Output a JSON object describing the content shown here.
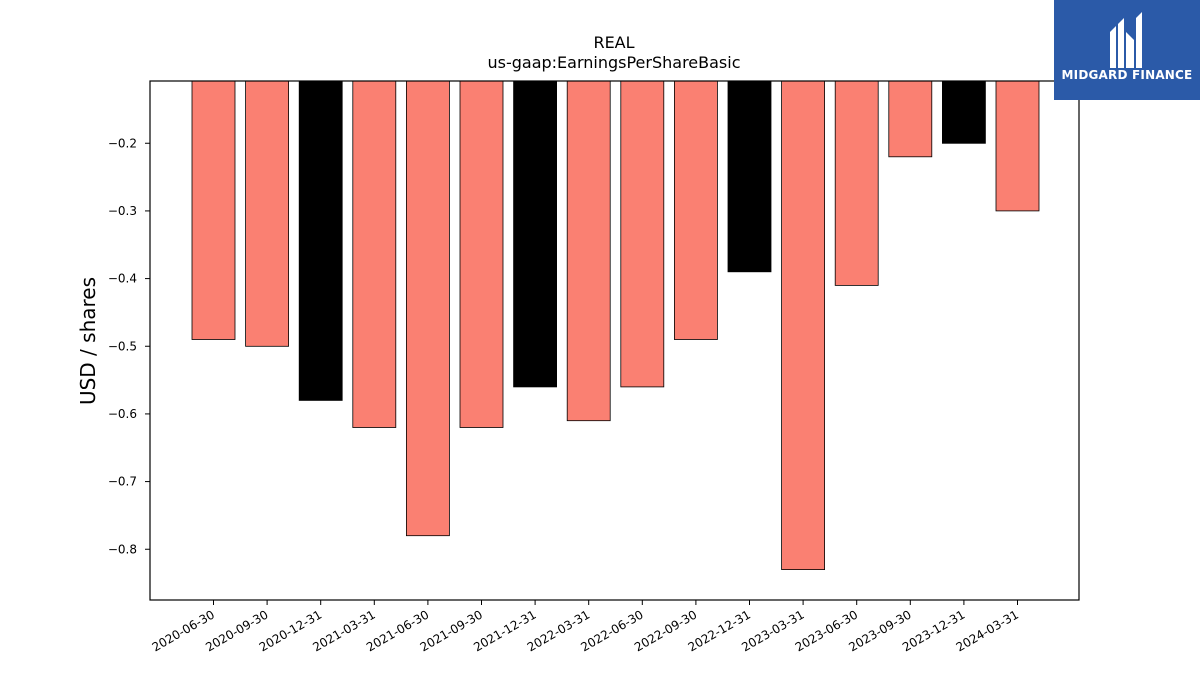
{
  "brand": {
    "name": "MIDGARD FINANCE",
    "logo_icon": "midgard-m-logo-icon",
    "bg_color": "#2b5aa8"
  },
  "chart_data": {
    "type": "bar",
    "title": "REAL",
    "subtitle": "us-gaap:EarningsPerShareBasic",
    "xlabel": "",
    "ylabel": "USD / shares",
    "ylim": [
      -0.875,
      -0.108
    ],
    "yticks": [
      -0.8,
      -0.7,
      -0.6,
      -0.5,
      -0.4,
      -0.3,
      -0.2
    ],
    "ytick_labels": [
      "−0.8",
      "−0.7",
      "−0.6",
      "−0.5",
      "−0.4",
      "−0.3",
      "−0.2"
    ],
    "grid": false,
    "colors": {
      "quarter": "#fa8072",
      "year_end": "#000000"
    },
    "categories": [
      "2020-06-30",
      "2020-09-30",
      "2020-12-31",
      "2021-03-31",
      "2021-06-30",
      "2021-09-30",
      "2021-12-31",
      "2022-03-31",
      "2022-06-30",
      "2022-09-30",
      "2022-12-31",
      "2023-03-31",
      "2023-06-30",
      "2023-09-30",
      "2023-12-31",
      "2024-03-31"
    ],
    "values": [
      -0.49,
      -0.5,
      -0.58,
      -0.62,
      -0.78,
      -0.62,
      -0.56,
      -0.61,
      -0.56,
      -0.49,
      -0.39,
      -0.83,
      -0.41,
      -0.22,
      -0.2,
      -0.3
    ],
    "bar_types": [
      "quarter",
      "quarter",
      "year_end",
      "quarter",
      "quarter",
      "quarter",
      "year_end",
      "quarter",
      "quarter",
      "quarter",
      "year_end",
      "quarter",
      "quarter",
      "quarter",
      "year_end",
      "quarter"
    ]
  }
}
